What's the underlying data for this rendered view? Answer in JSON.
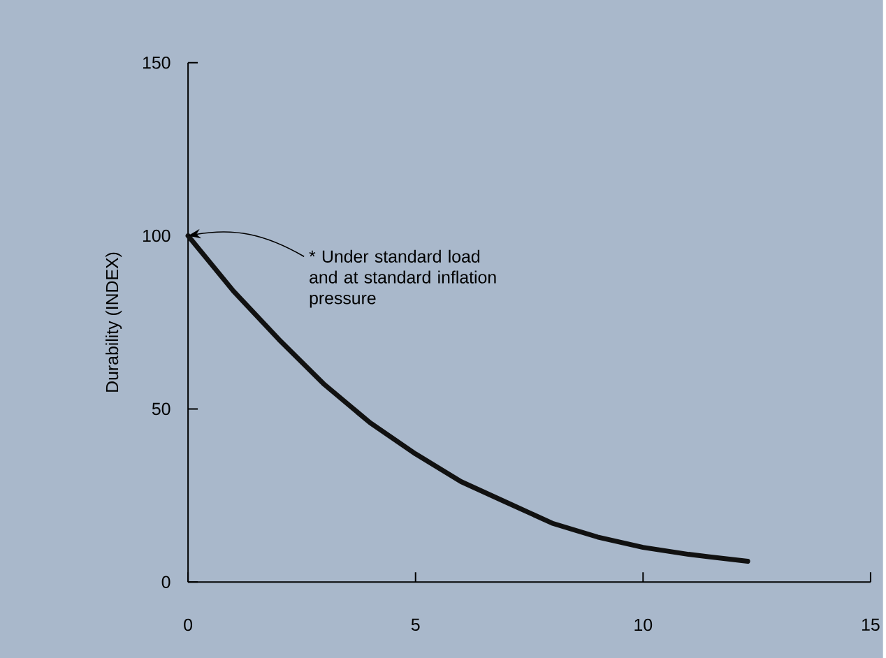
{
  "chart_data": {
    "type": "line",
    "ylabel": "Durability (INDEX)",
    "x": [
      0,
      1,
      2,
      3,
      4,
      5,
      6,
      7,
      8,
      9,
      10,
      11,
      12.3
    ],
    "series": [
      {
        "color": "#111111",
        "values": [
          100,
          84,
          70,
          57,
          46,
          37,
          29,
          23,
          17,
          13,
          10,
          8,
          6
        ]
      }
    ],
    "xlim": [
      0,
      15
    ],
    "ylim": [
      0,
      150
    ],
    "xticks": [
      0,
      5,
      10,
      15
    ],
    "yticks": [
      0,
      50,
      100,
      150
    ],
    "grid": false,
    "marker": "none",
    "line_style": "solid",
    "annotations": [
      {
        "text": "* Under standard load and at standard inflation pressure",
        "x": 0,
        "y": 100
      }
    ]
  }
}
